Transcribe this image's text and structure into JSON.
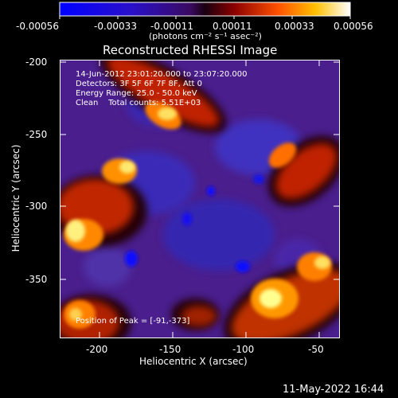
{
  "colorbar": {
    "tick_labels": [
      "-0.00056",
      "-0.00033",
      "-0.00011",
      "0.00011",
      "0.00033",
      "0.00056"
    ],
    "units_label": "(photons cm⁻² s⁻¹ asec⁻²)"
  },
  "plot": {
    "title": "Reconstructed RHESSI Image",
    "xlabel": "Heliocentric X (arcsec)",
    "ylabel": "Heliocentric Y (arcsec)",
    "x_ticks": [
      "-200",
      "-150",
      "-100",
      "-50"
    ],
    "y_ticks": [
      "-200",
      "-250",
      "-300",
      "-350"
    ],
    "info_lines": [
      "14-Jun-2012 23:01:20.000 to 23:07:20.000",
      "Detectors: 3F 5F 6F 7F 8F, Att 0",
      "Energy Range: 25.0 - 50.0 keV",
      "Clean    Total counts: 5.51E+03"
    ],
    "peak_text": "Position of Peak = [-91,-373]"
  },
  "footer": {
    "timestamp": "11-May-2022 16:44"
  },
  "colors": {
    "background": "#000000",
    "colormap_low": "#0000ff",
    "colormap_mid": "#5a2aa0",
    "colormap_high": "#ffffe0"
  }
}
